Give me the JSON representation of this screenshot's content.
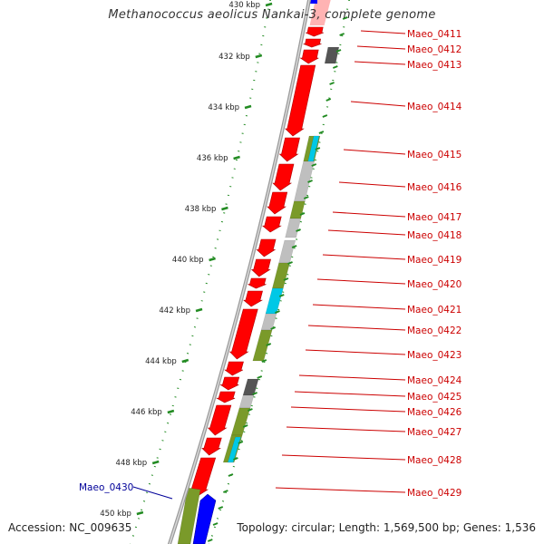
{
  "title": "Methanococcus aeolicus Nankai-3, complete genome",
  "footer": {
    "accession": "Accession: NC_009635",
    "topology": "Topology: circular; Length: 1,569,500 bp; Genes: 1,536"
  },
  "colors": {
    "forward_gene": "#ff0000",
    "reverse_gene": "#0000ff",
    "feature_label": "#cc0000",
    "reverse_label": "#000099",
    "tick_mark": "#228b22",
    "backbone": "#808080",
    "olive": "#7a9a2a",
    "gray": "#bfbfbf",
    "dark_gray": "#555555",
    "cyan": "#00c8e6"
  },
  "ruler": {
    "unit": "kbp",
    "ticks": [
      {
        "label": "430 kbp"
      },
      {
        "label": "432 kbp"
      },
      {
        "label": "434 kbp"
      },
      {
        "label": "436 kbp"
      },
      {
        "label": "438 kbp"
      },
      {
        "label": "440 kbp"
      },
      {
        "label": "442 kbp"
      },
      {
        "label": "444 kbp"
      },
      {
        "label": "446 kbp"
      },
      {
        "label": "448 kbp"
      },
      {
        "label": "450 kbp"
      }
    ]
  },
  "gene_labels": [
    {
      "text": "Maeo_0411",
      "color": "#cc0000"
    },
    {
      "text": "Maeo_0412",
      "color": "#cc0000"
    },
    {
      "text": "Maeo_0413",
      "color": "#cc0000"
    },
    {
      "text": "Maeo_0414",
      "color": "#cc0000"
    },
    {
      "text": "Maeo_0415",
      "color": "#cc0000"
    },
    {
      "text": "Maeo_0416",
      "color": "#cc0000"
    },
    {
      "text": "Maeo_0417",
      "color": "#cc0000"
    },
    {
      "text": "Maeo_0418",
      "color": "#cc0000"
    },
    {
      "text": "Maeo_0419",
      "color": "#cc0000"
    },
    {
      "text": "Maeo_0420",
      "color": "#cc0000"
    },
    {
      "text": "Maeo_0421",
      "color": "#cc0000"
    },
    {
      "text": "Maeo_0422",
      "color": "#cc0000"
    },
    {
      "text": "Maeo_0423",
      "color": "#cc0000"
    },
    {
      "text": "Maeo_0424",
      "color": "#cc0000"
    },
    {
      "text": "Maeo_0425",
      "color": "#cc0000"
    },
    {
      "text": "Maeo_0426",
      "color": "#cc0000"
    },
    {
      "text": "Maeo_0427",
      "color": "#cc0000"
    },
    {
      "text": "Maeo_0428",
      "color": "#cc0000"
    },
    {
      "text": "Maeo_0429",
      "color": "#cc0000"
    },
    {
      "text": "Maeo_0430",
      "color": "#000099"
    }
  ]
}
